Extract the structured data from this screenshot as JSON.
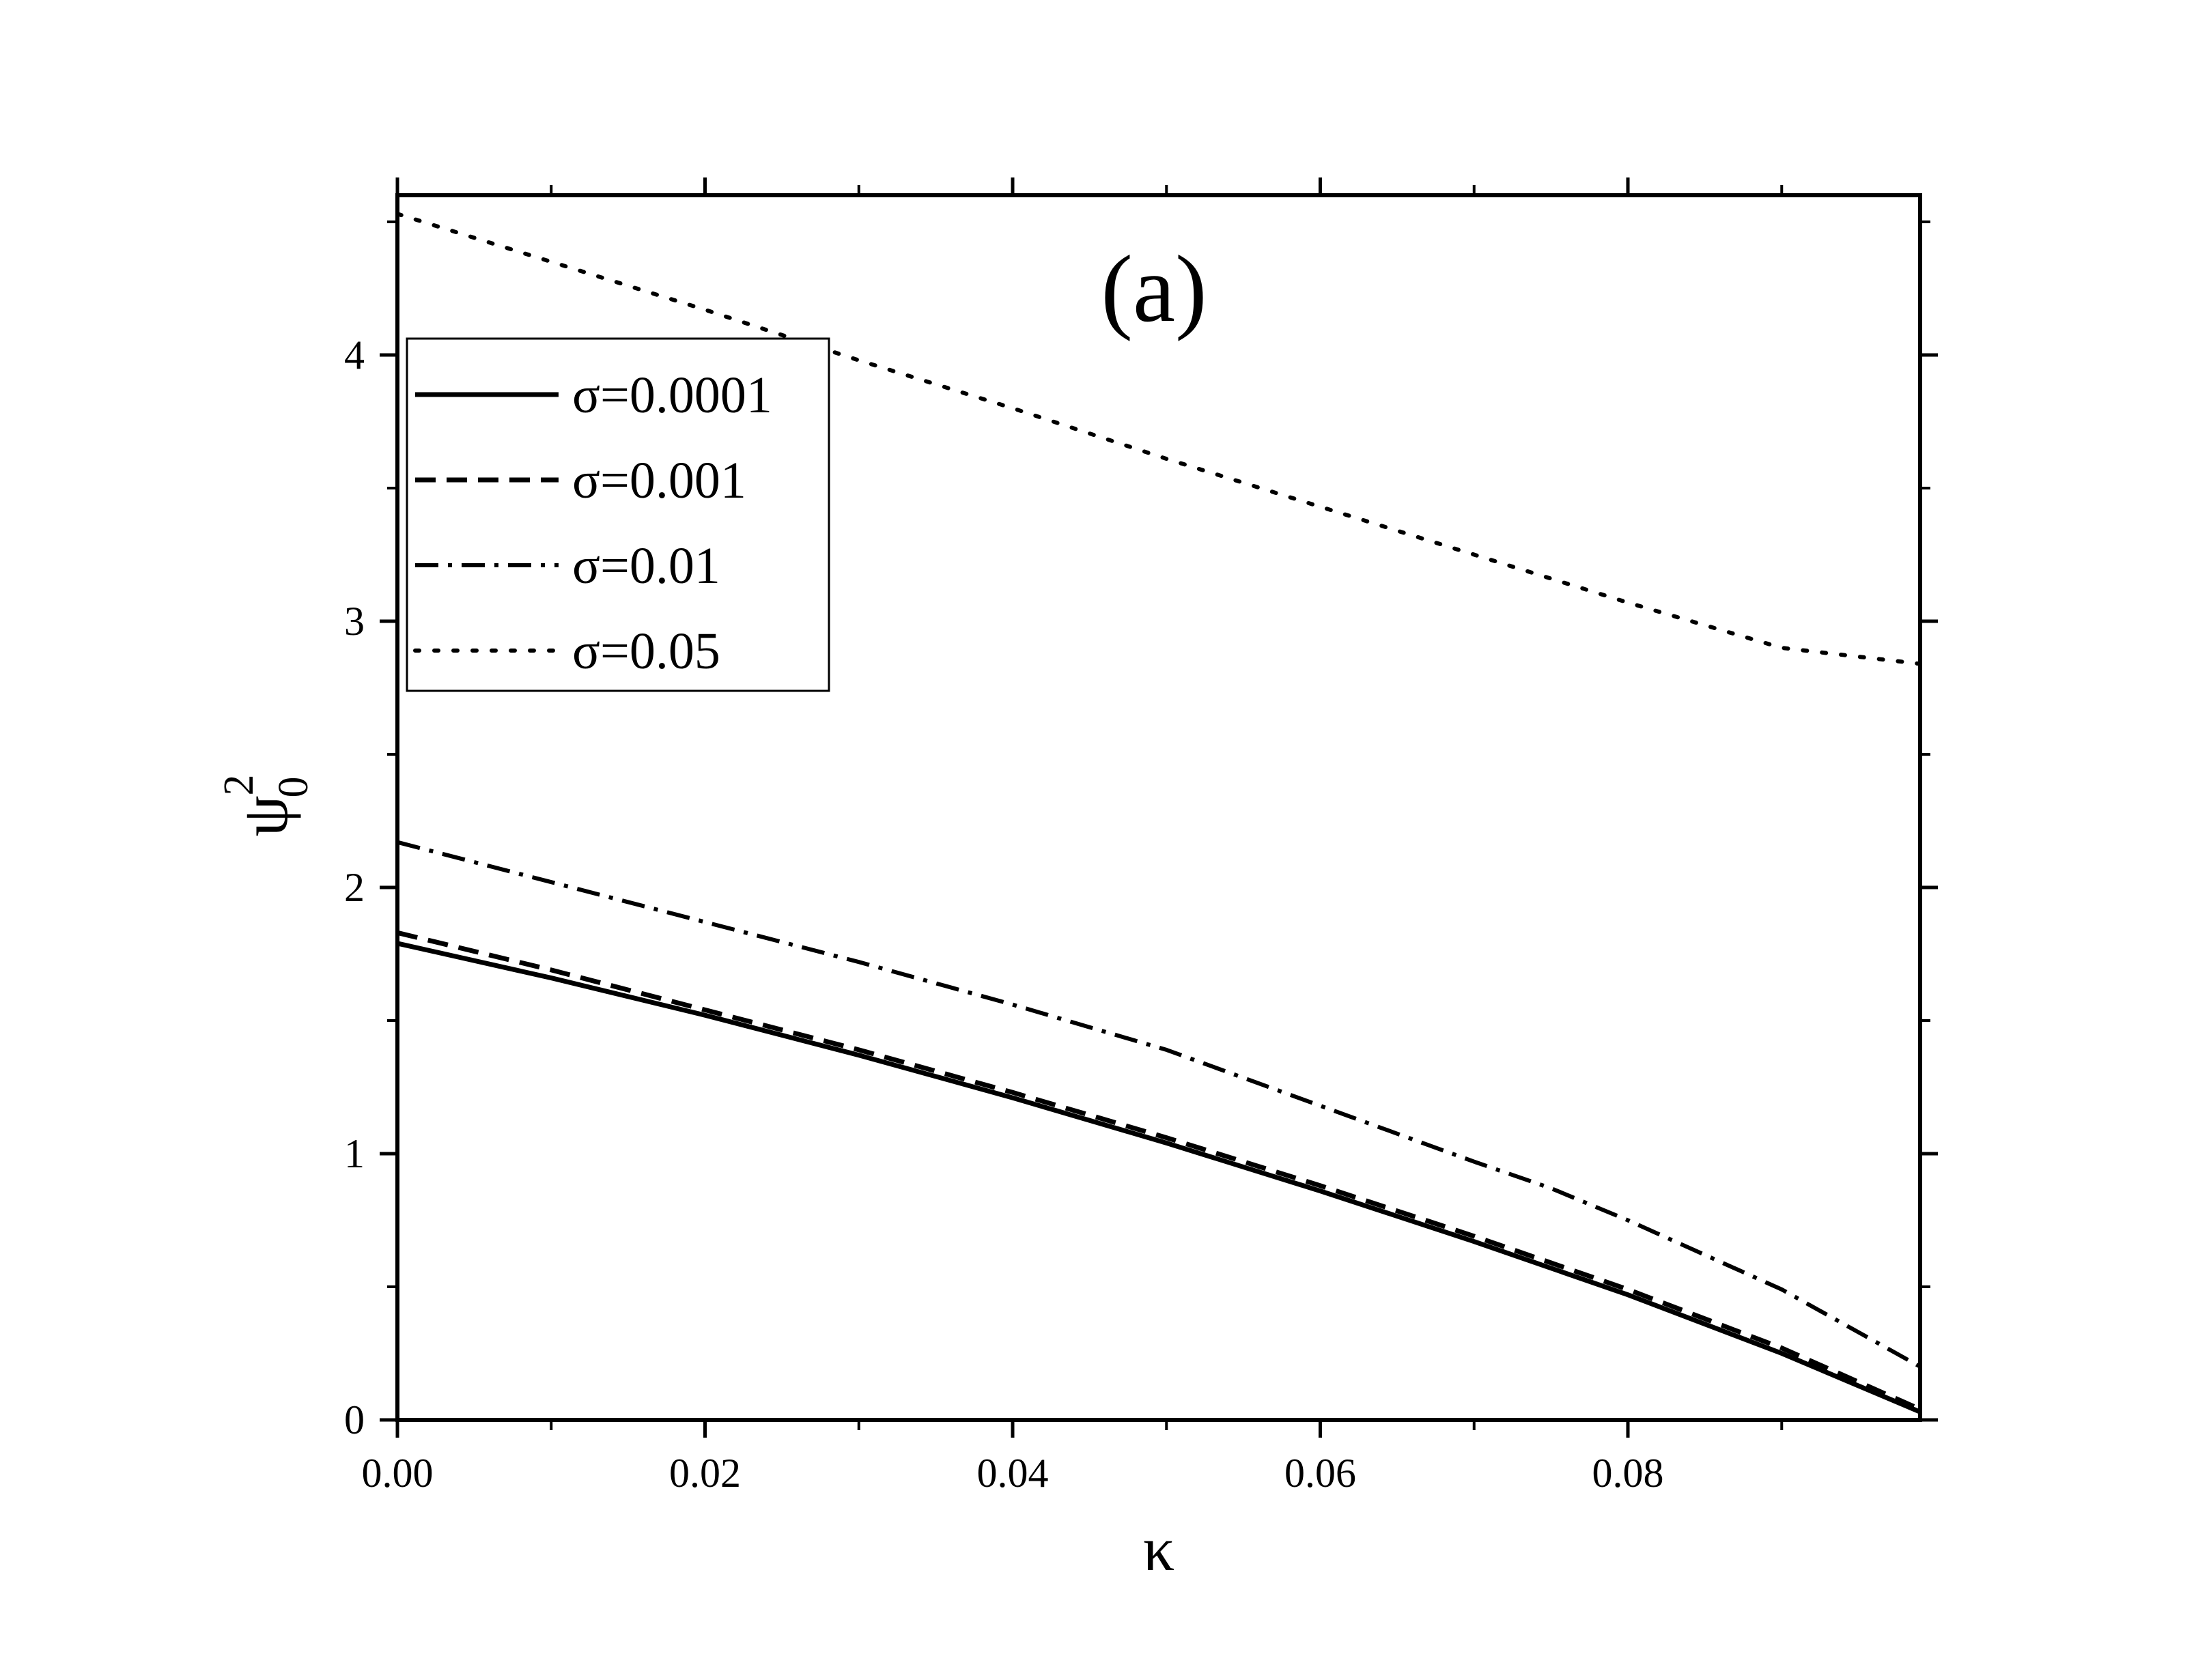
{
  "chart_data": {
    "type": "line",
    "panel_label": "(a)",
    "xlabel": "κ",
    "ylabel": {
      "base": "ψ",
      "subscript": "0",
      "superscript": "2"
    },
    "xlim": [
      0,
      0.099
    ],
    "ylim": [
      0,
      4.6
    ],
    "xticks": [
      {
        "value": 0.0,
        "label": "0.00"
      },
      {
        "value": 0.02,
        "label": "0.02"
      },
      {
        "value": 0.04,
        "label": "0.04"
      },
      {
        "value": 0.06,
        "label": "0.06"
      },
      {
        "value": 0.08,
        "label": "0.08"
      }
    ],
    "yticks": [
      {
        "value": 0,
        "label": "0"
      },
      {
        "value": 1,
        "label": "1"
      },
      {
        "value": 2,
        "label": "2"
      },
      {
        "value": 3,
        "label": "3"
      },
      {
        "value": 4,
        "label": "4"
      }
    ],
    "x_minor_step": 0.01,
    "y_minor_step": 0.5,
    "grid": false,
    "legend_position": "top-left",
    "series": [
      {
        "name": "σ=0.0001",
        "dash": "solid",
        "x": [
          0,
          0.01,
          0.02,
          0.03,
          0.04,
          0.05,
          0.06,
          0.07,
          0.08,
          0.09,
          0.099
        ],
        "y": [
          1.79,
          1.66,
          1.52,
          1.37,
          1.21,
          1.04,
          0.86,
          0.67,
          0.47,
          0.25,
          0.03
        ]
      },
      {
        "name": "σ=0.001",
        "dash": "dash",
        "x": [
          0,
          0.01,
          0.02,
          0.03,
          0.04,
          0.05,
          0.06,
          0.07,
          0.08,
          0.09,
          0.099
        ],
        "y": [
          1.83,
          1.69,
          1.54,
          1.39,
          1.23,
          1.06,
          0.88,
          0.69,
          0.49,
          0.27,
          0.04
        ]
      },
      {
        "name": "σ=0.01",
        "dash": "dashdot",
        "x": [
          0,
          0.01,
          0.02,
          0.03,
          0.04,
          0.05,
          0.06,
          0.07,
          0.075,
          0.08,
          0.09,
          0.099
        ],
        "y": [
          2.17,
          2.02,
          1.87,
          1.72,
          1.56,
          1.39,
          1.18,
          0.97,
          0.87,
          0.75,
          0.49,
          0.2
        ]
      },
      {
        "name": "σ=0.05",
        "dash": "dot",
        "x": [
          0,
          0.01,
          0.02,
          0.03,
          0.04,
          0.05,
          0.06,
          0.07,
          0.08,
          0.09,
          0.099
        ],
        "y": [
          4.53,
          4.35,
          4.17,
          3.98,
          3.8,
          3.61,
          3.43,
          3.25,
          3.07,
          2.9,
          2.84
        ]
      }
    ]
  }
}
